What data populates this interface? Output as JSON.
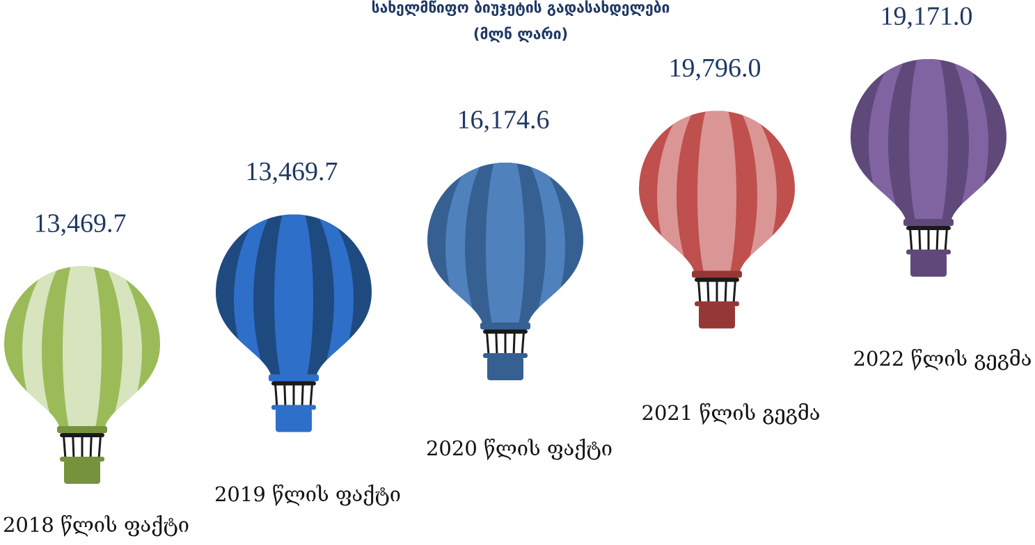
{
  "chart_data": {
    "type": "balloon",
    "title": "სახელმწიფო ბიუჯეტის გადასახდელები",
    "subtitle": "(მლნ ლარი)",
    "categories": [
      "2018 წლის ფაქტი",
      "2019 წლის ფაქტი",
      "2020 წლის ფაქტი",
      "2021 წლის გეგმა",
      "2022 წლის გეგმა"
    ],
    "values": [
      13469.7,
      13469.7,
      16174.6,
      19796.0,
      19171.0
    ],
    "value_labels": [
      "13,469.7",
      "13,469.7",
      "16,174.6",
      "19,796.0",
      "19,171.0"
    ],
    "colors": [
      [
        "#9bbb59",
        "#d7e4bd",
        "#76923c"
      ],
      [
        "#1f4a80",
        "#2e6fc9",
        "#2e6fc9"
      ],
      [
        "#366092",
        "#4f81bd",
        "#366092"
      ],
      [
        "#c0504d",
        "#d99694",
        "#953735"
      ],
      [
        "#5f497a",
        "#8064a2",
        "#5f497a"
      ]
    ]
  }
}
